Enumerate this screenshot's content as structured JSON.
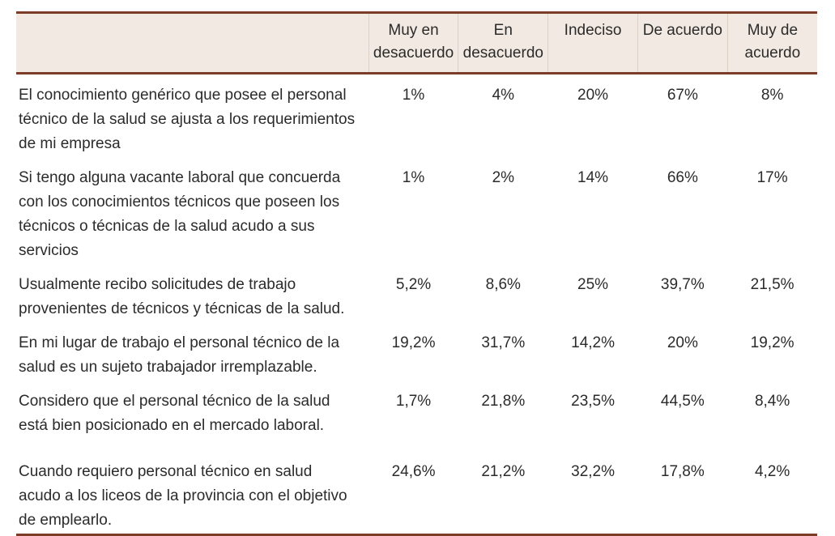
{
  "colors": {
    "accent_rule": "#7b3c28",
    "header_background": "#f2eae2",
    "text": "#2b2b2b",
    "page_background": "#ffffff"
  },
  "chart_data": {
    "type": "table",
    "description": "Likert-scale survey results table (Spanish) about employers' perception of health technical personnel",
    "columns": [
      "Muy en desacuerdo",
      "En desacuerdo",
      "Indeciso",
      "De acuerdo",
      "Muy de acuerdo"
    ],
    "rows": [
      {
        "statement": "El conocimiento genérico que posee el personal técnico de la salud se ajusta a los requerimientos de mi empresa",
        "values": [
          "1%",
          "4%",
          "20%",
          "67%",
          "8%"
        ]
      },
      {
        "statement": "Si tengo alguna vacante laboral que concuerda con los conocimientos técnicos que poseen los técnicos o técnicas de la salud acudo a sus servicios",
        "values": [
          "1%",
          "2%",
          "14%",
          "66%",
          "17%"
        ]
      },
      {
        "statement": "Usualmente recibo solicitudes de trabajo provenientes de técnicos y técnicas de la salud.",
        "values": [
          "5,2%",
          "8,6%",
          "25%",
          "39,7%",
          "21,5%"
        ]
      },
      {
        "statement": "En mi lugar de trabajo el personal técnico de la salud es un sujeto trabajador irremplazable.",
        "values": [
          "19,2%",
          "31,7%",
          "14,2%",
          "20%",
          "19,2%"
        ]
      },
      {
        "statement": "Considero que el personal técnico de la salud está bien posicionado en el mercado laboral.",
        "values": [
          "1,7%",
          "21,8%",
          "23,5%",
          "44,5%",
          "8,4%"
        ]
      },
      {
        "statement": "Cuando requiero personal técnico en salud acudo a los liceos de la provincia con el objetivo de emplearlo.",
        "values": [
          "24,6%",
          "21,2%",
          "32,2%",
          "17,8%",
          "4,2%"
        ]
      }
    ]
  }
}
